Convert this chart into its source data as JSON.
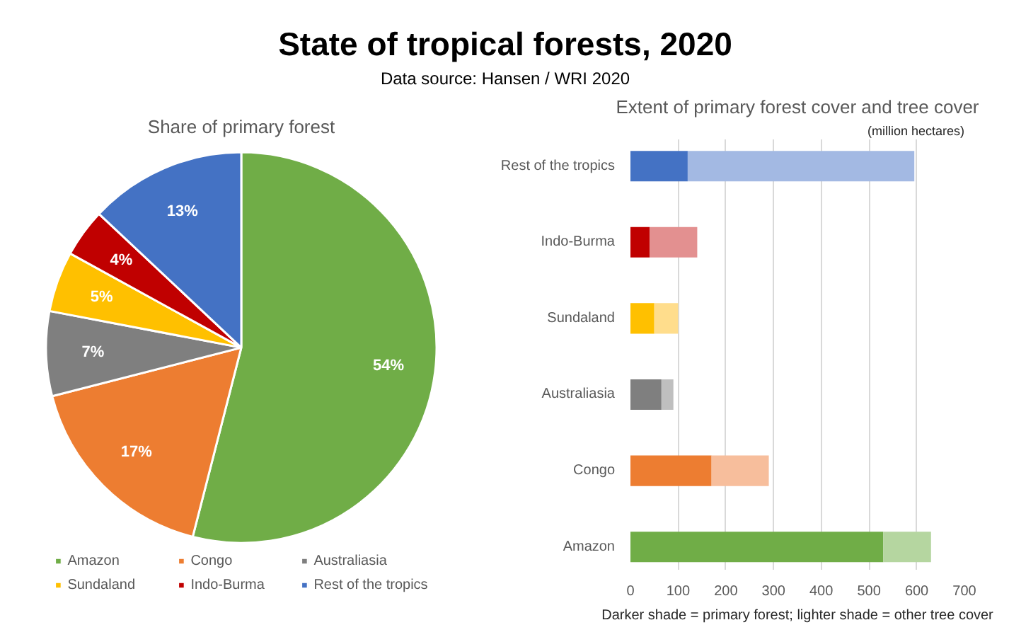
{
  "chart_data": [
    {
      "type": "other",
      "title": "State of tropical forests, 2020",
      "subtitle": "Data source: Hansen / WRI 2020"
    },
    {
      "type": "pie",
      "title": "Share of primary forest",
      "categories": [
        "Amazon",
        "Congo",
        "Australiasia",
        "Sundaland",
        "Indo-Burma",
        "Rest of the tropics"
      ],
      "values": [
        54,
        17,
        7,
        5,
        4,
        13
      ],
      "colors": [
        "#70ad47",
        "#ed7d31",
        "#7f7f7f",
        "#ffc000",
        "#c00000",
        "#4472c4"
      ],
      "value_labels": [
        "54%",
        "17%",
        "7%",
        "5%",
        "4%",
        "13%"
      ],
      "legend": "bottom"
    },
    {
      "type": "bar",
      "orientation": "horizontal",
      "stacked": true,
      "title": "Extent of primary forest cover and tree cover",
      "xlabel": "Darker shade = primary forest; lighter shade = other tree cover",
      "annotations": [
        "(million hectares)"
      ],
      "categories": [
        "Rest of the tropics",
        "Indo-Burma",
        "Sundaland",
        "Australiasia",
        "Congo",
        "Amazon"
      ],
      "series": [
        {
          "colors": [
            "#4472c4",
            "#c00000",
            "#ffc000",
            "#7f7f7f",
            "#ed7d31",
            "#70ad47"
          ],
          "values": [
            120,
            40,
            50,
            65,
            170,
            530
          ]
        },
        {
          "colors": [
            "#a3b9e3",
            "#e39090",
            "#ffdd8c",
            "#bfbfbf",
            "#f7be9c",
            "#b5d6a0"
          ],
          "values": [
            475,
            100,
            50,
            25,
            120,
            100
          ]
        }
      ],
      "xlim": [
        0,
        700
      ],
      "xticks": [
        0,
        100,
        200,
        300,
        400,
        500,
        600,
        700
      ],
      "grid": "x"
    }
  ]
}
